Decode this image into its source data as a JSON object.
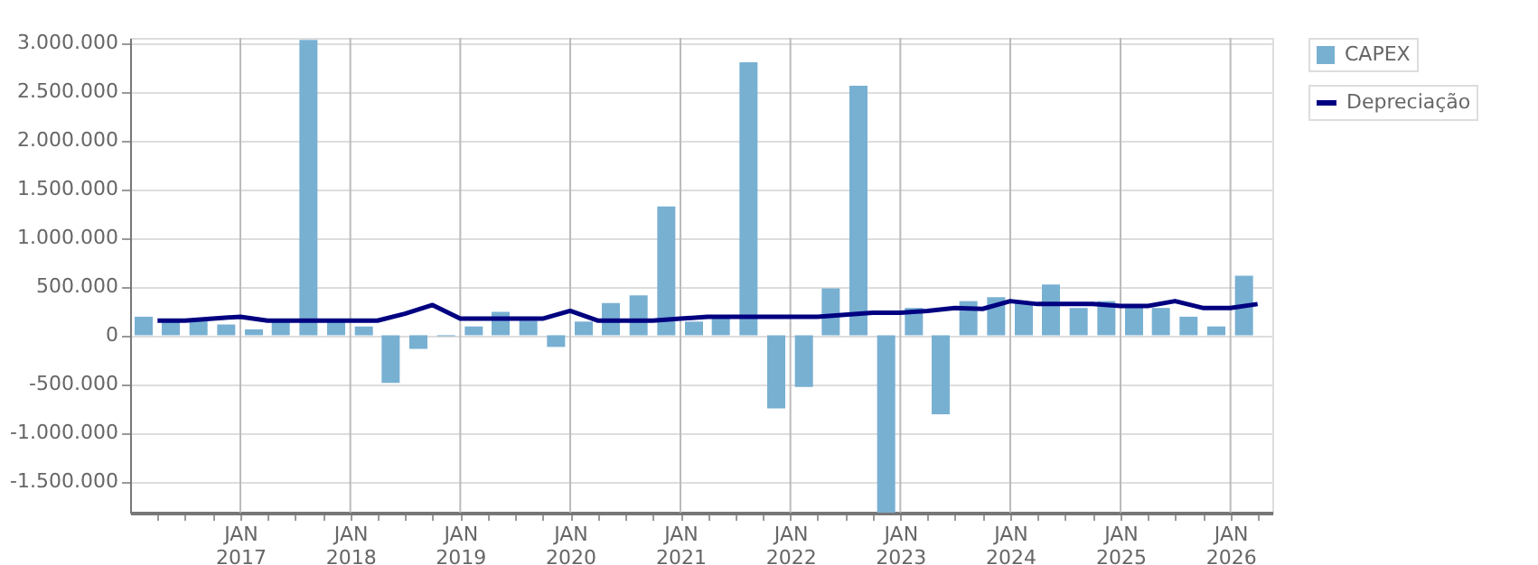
{
  "chart_data": {
    "type": "bar",
    "x": [
      "2016-02-15",
      "2016-05-15",
      "2016-08-15",
      "2016-11-15",
      "2017-02-15",
      "2017-05-15",
      "2017-08-15",
      "2017-11-15",
      "2018-02-15",
      "2018-05-15",
      "2018-08-15",
      "2018-11-15",
      "2019-02-15",
      "2019-05-15",
      "2019-08-15",
      "2019-11-15",
      "2020-02-15",
      "2020-05-15",
      "2020-08-15",
      "2020-11-15",
      "2021-02-15",
      "2021-05-15",
      "2021-08-15",
      "2021-11-15",
      "2022-02-15",
      "2022-05-15",
      "2022-08-15",
      "2022-11-15",
      "2023-02-15",
      "2023-05-15",
      "2023-08-15",
      "2023-11-15",
      "2024-02-15",
      "2024-05-15",
      "2024-08-15",
      "2024-11-15",
      "2025-02-15",
      "2025-05-15",
      "2025-08-15",
      "2025-11-15",
      "2026-02-15"
    ],
    "series": [
      {
        "name": "CAPEX",
        "color": "#78b0d2",
        "values": [
          190000,
          150000,
          150000,
          110000,
          60000,
          150000,
          3030000,
          150000,
          90000,
          -490000,
          -140000,
          -10000,
          90000,
          240000,
          150000,
          -120000,
          140000,
          330000,
          410000,
          1320000,
          140000,
          180000,
          2800000,
          -750000,
          -530000,
          480000,
          2560000,
          -1820000,
          280000,
          -810000,
          350000,
          390000,
          340000,
          520000,
          280000,
          350000,
          300000,
          280000,
          190000,
          90000,
          610000
        ]
      },
      {
        "name": "Depreciação",
        "type": "line",
        "color": "#000080",
        "x": [
          "2016-04-01",
          "2016-07-01",
          "2016-10-01",
          "2017-01-01",
          "2017-04-01",
          "2017-07-01",
          "2017-10-01",
          "2018-01-01",
          "2018-04-01",
          "2018-07-01",
          "2018-10-01",
          "2019-01-01",
          "2019-04-01",
          "2019-07-01",
          "2019-10-01",
          "2020-01-01",
          "2020-04-01",
          "2020-07-01",
          "2020-10-01",
          "2021-01-01",
          "2021-04-01",
          "2021-07-01",
          "2021-10-01",
          "2022-01-01",
          "2022-04-01",
          "2022-07-01",
          "2022-10-01",
          "2023-01-01",
          "2023-04-01",
          "2023-07-01",
          "2023-10-01",
          "2024-01-01",
          "2024-04-01",
          "2024-07-01",
          "2024-10-01",
          "2025-01-01",
          "2025-04-01",
          "2025-07-01",
          "2025-10-01",
          "2026-01-01",
          "2026-04-01"
        ],
        "values": [
          150000,
          150000,
          170000,
          190000,
          150000,
          150000,
          150000,
          150000,
          150000,
          220000,
          310000,
          170000,
          170000,
          170000,
          170000,
          250000,
          150000,
          150000,
          150000,
          170000,
          190000,
          190000,
          190000,
          190000,
          190000,
          210000,
          230000,
          230000,
          250000,
          280000,
          270000,
          350000,
          320000,
          320000,
          320000,
          300000,
          300000,
          350000,
          280000,
          280000,
          320000
        ]
      }
    ],
    "xlim": [
      "2016-01-01",
      "2026-05-20"
    ],
    "xticks": [
      {
        "value": "2016-04-01",
        "label": null
      },
      {
        "value": "2016-07-01",
        "label": null
      },
      {
        "value": "2016-10-01",
        "label": null
      },
      {
        "value": "2017-01-01",
        "label": "JAN 2017"
      },
      {
        "value": "2017-04-01",
        "label": null
      },
      {
        "value": "2017-07-01",
        "label": null
      },
      {
        "value": "2017-10-01",
        "label": null
      },
      {
        "value": "2018-01-01",
        "label": "JAN 2018"
      },
      {
        "value": "2018-04-01",
        "label": null
      },
      {
        "value": "2018-07-01",
        "label": null
      },
      {
        "value": "2018-10-01",
        "label": null
      },
      {
        "value": "2019-01-01",
        "label": "JAN 2019"
      },
      {
        "value": "2019-04-01",
        "label": null
      },
      {
        "value": "2019-07-01",
        "label": null
      },
      {
        "value": "2019-10-01",
        "label": null
      },
      {
        "value": "2020-01-01",
        "label": "JAN 2020"
      },
      {
        "value": "2020-04-01",
        "label": null
      },
      {
        "value": "2020-07-01",
        "label": null
      },
      {
        "value": "2020-10-01",
        "label": null
      },
      {
        "value": "2021-01-01",
        "label": "JAN 2021"
      },
      {
        "value": "2021-04-01",
        "label": null
      },
      {
        "value": "2021-07-01",
        "label": null
      },
      {
        "value": "2021-10-01",
        "label": null
      },
      {
        "value": "2022-01-01",
        "label": "JAN 2022"
      },
      {
        "value": "2022-04-01",
        "label": null
      },
      {
        "value": "2022-07-01",
        "label": null
      },
      {
        "value": "2022-10-01",
        "label": null
      },
      {
        "value": "2023-01-01",
        "label": "JAN 2023"
      },
      {
        "value": "2023-04-01",
        "label": null
      },
      {
        "value": "2023-07-01",
        "label": null
      },
      {
        "value": "2023-10-01",
        "label": null
      },
      {
        "value": "2024-01-01",
        "label": "JAN 2024"
      },
      {
        "value": "2024-04-01",
        "label": null
      },
      {
        "value": "2024-07-01",
        "label": null
      },
      {
        "value": "2024-10-01",
        "label": null
      },
      {
        "value": "2025-01-01",
        "label": "JAN 2025"
      },
      {
        "value": "2025-04-01",
        "label": null
      },
      {
        "value": "2025-07-01",
        "label": null
      },
      {
        "value": "2025-10-01",
        "label": null
      },
      {
        "value": "2026-01-01",
        "label": "JAN 2026"
      },
      {
        "value": "2026-04-01",
        "label": null
      }
    ],
    "ylim": [
      -1820000,
      3050000
    ],
    "yticks": [
      {
        "value": -1500000,
        "label": "-1.500.000"
      },
      {
        "value": -1000000,
        "label": "-1.000.000"
      },
      {
        "value": -500000,
        "label": "-500.000"
      },
      {
        "value": 0,
        "label": "0"
      },
      {
        "value": 500000,
        "label": "500.000"
      },
      {
        "value": 1000000,
        "label": "1.000.000"
      },
      {
        "value": 1500000,
        "label": "1.500.000"
      },
      {
        "value": 2000000,
        "label": "2.000.000"
      },
      {
        "value": 2500000,
        "label": "2.500.000"
      },
      {
        "value": 3000000,
        "label": "3.000.000"
      }
    ],
    "grid": true,
    "legend": "top right",
    "marker": "none",
    "line_style": "solid"
  }
}
